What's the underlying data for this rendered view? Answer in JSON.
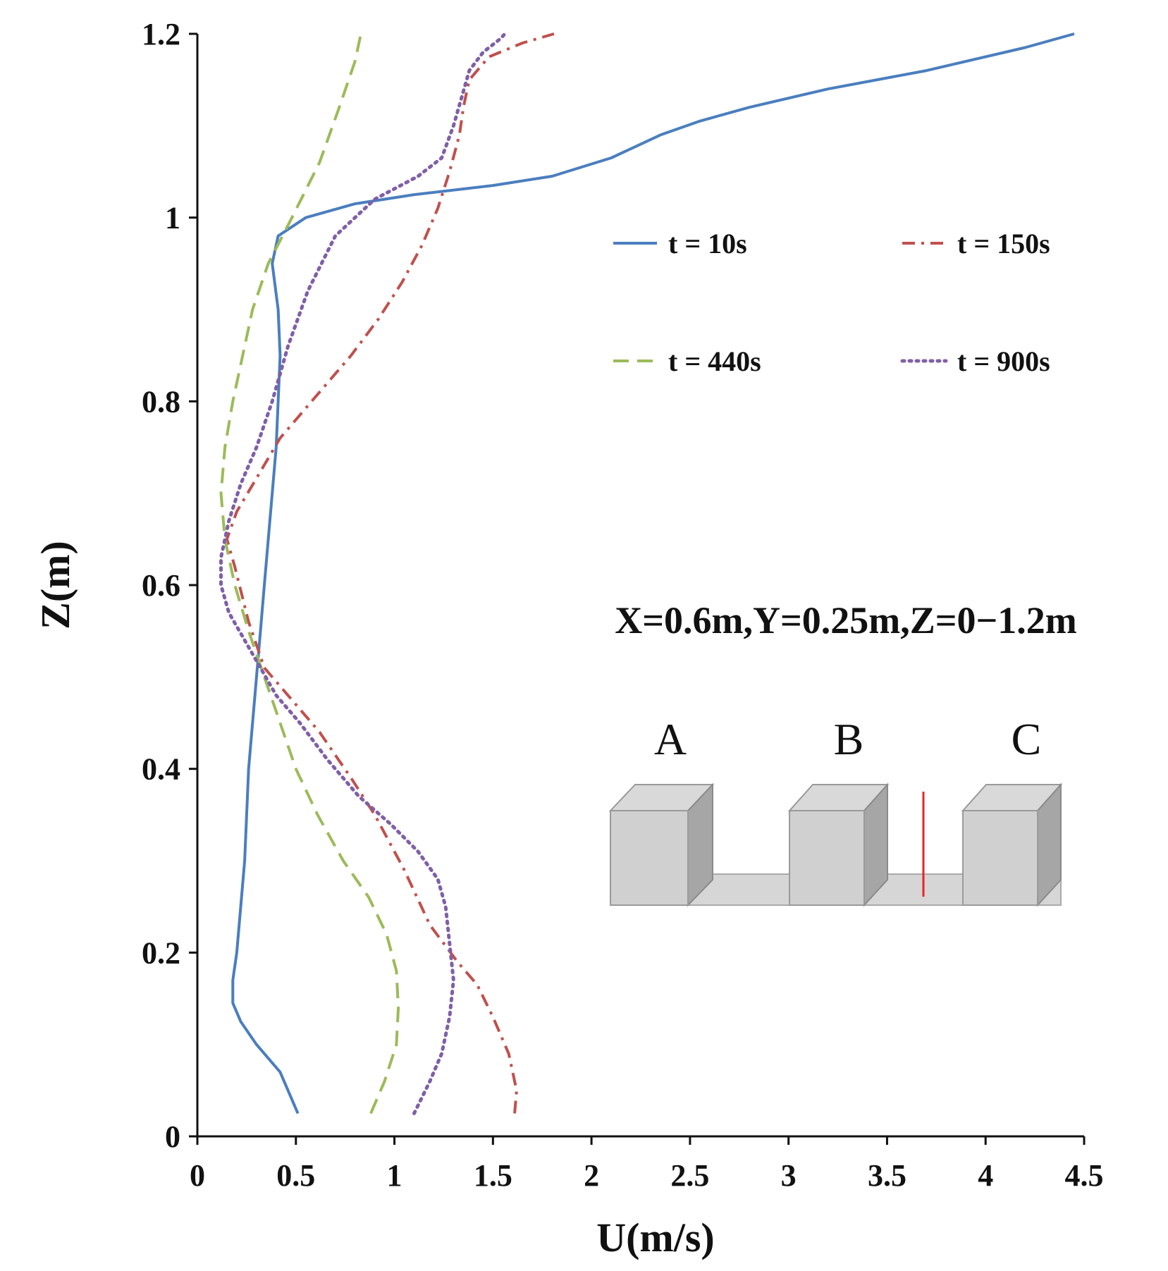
{
  "chart_data": {
    "type": "line",
    "title": "",
    "xlabel": "U(m/s)",
    "ylabel": "Z(m)",
    "xlim": [
      0,
      4.5
    ],
    "ylim": [
      0,
      1.2
    ],
    "xticks": [
      0,
      0.5,
      1,
      1.5,
      2,
      2.5,
      3,
      3.5,
      4,
      4.5
    ],
    "xtick_labels": [
      "0",
      "0.5",
      "1",
      "1.5",
      "2",
      "2.5",
      "3",
      "3.5",
      "4",
      "4.5"
    ],
    "yticks": [
      0,
      0.2,
      0.4,
      0.6,
      0.8,
      1.0,
      1.2
    ],
    "ytick_labels": [
      "0",
      "0.2",
      "0.4",
      "0.6",
      "0.8",
      "1",
      "1.2"
    ],
    "grid": false,
    "legend_position": "top-right",
    "annotation": "X=0.6m,Y=0.25m,Z=0−1.2m",
    "inset_labels": [
      "A",
      "B",
      "C"
    ],
    "series": [
      {
        "name": "t = 10s",
        "color": "#4a7ebf",
        "style": "solid",
        "points": [
          [
            0.51,
            0.025
          ],
          [
            0.42,
            0.07
          ],
          [
            0.3,
            0.1
          ],
          [
            0.22,
            0.125
          ],
          [
            0.18,
            0.145
          ],
          [
            0.18,
            0.17
          ],
          [
            0.2,
            0.2
          ],
          [
            0.22,
            0.25
          ],
          [
            0.24,
            0.3
          ],
          [
            0.25,
            0.35
          ],
          [
            0.26,
            0.4
          ],
          [
            0.28,
            0.45
          ],
          [
            0.3,
            0.5
          ],
          [
            0.32,
            0.55
          ],
          [
            0.34,
            0.6
          ],
          [
            0.36,
            0.65
          ],
          [
            0.38,
            0.7
          ],
          [
            0.4,
            0.75
          ],
          [
            0.41,
            0.8
          ],
          [
            0.42,
            0.85
          ],
          [
            0.41,
            0.9
          ],
          [
            0.38,
            0.95
          ],
          [
            0.41,
            0.98
          ],
          [
            0.55,
            1.0
          ],
          [
            0.8,
            1.015
          ],
          [
            1.1,
            1.025
          ],
          [
            1.5,
            1.035
          ],
          [
            1.8,
            1.045
          ],
          [
            2.1,
            1.065
          ],
          [
            2.35,
            1.09
          ],
          [
            2.55,
            1.105
          ],
          [
            2.8,
            1.12
          ],
          [
            3.2,
            1.14
          ],
          [
            3.7,
            1.16
          ],
          [
            4.2,
            1.185
          ],
          [
            4.45,
            1.2
          ]
        ]
      },
      {
        "name": "t = 150s",
        "color": "#c0504d",
        "style": "dashdot",
        "points": [
          [
            1.61,
            0.025
          ],
          [
            1.62,
            0.05
          ],
          [
            1.58,
            0.09
          ],
          [
            1.5,
            0.13
          ],
          [
            1.42,
            0.165
          ],
          [
            1.32,
            0.19
          ],
          [
            1.18,
            0.23
          ],
          [
            1.05,
            0.29
          ],
          [
            0.9,
            0.35
          ],
          [
            0.78,
            0.39
          ],
          [
            0.62,
            0.44
          ],
          [
            0.46,
            0.48
          ],
          [
            0.34,
            0.51
          ],
          [
            0.26,
            0.56
          ],
          [
            0.19,
            0.62
          ],
          [
            0.15,
            0.65
          ],
          [
            0.2,
            0.68
          ],
          [
            0.31,
            0.72
          ],
          [
            0.42,
            0.76
          ],
          [
            0.58,
            0.8
          ],
          [
            0.78,
            0.85
          ],
          [
            0.92,
            0.89
          ],
          [
            1.04,
            0.93
          ],
          [
            1.14,
            0.97
          ],
          [
            1.22,
            1.01
          ],
          [
            1.28,
            1.05
          ],
          [
            1.33,
            1.09
          ],
          [
            1.35,
            1.12
          ],
          [
            1.38,
            1.15
          ],
          [
            1.48,
            1.175
          ],
          [
            1.65,
            1.19
          ],
          [
            1.81,
            1.2
          ]
        ]
      },
      {
        "name": "t = 440s",
        "color": "#9bbb59",
        "style": "dashed",
        "points": [
          [
            0.88,
            0.025
          ],
          [
            0.95,
            0.06
          ],
          [
            1.01,
            0.1
          ],
          [
            1.02,
            0.14
          ],
          [
            1.01,
            0.18
          ],
          [
            0.96,
            0.22
          ],
          [
            0.87,
            0.26
          ],
          [
            0.74,
            0.3
          ],
          [
            0.61,
            0.35
          ],
          [
            0.5,
            0.4
          ],
          [
            0.42,
            0.45
          ],
          [
            0.34,
            0.5
          ],
          [
            0.26,
            0.55
          ],
          [
            0.19,
            0.6
          ],
          [
            0.14,
            0.65
          ],
          [
            0.12,
            0.7
          ],
          [
            0.14,
            0.75
          ],
          [
            0.18,
            0.8
          ],
          [
            0.23,
            0.85
          ],
          [
            0.28,
            0.9
          ],
          [
            0.36,
            0.95
          ],
          [
            0.48,
            1.0
          ],
          [
            0.62,
            1.06
          ],
          [
            0.72,
            1.12
          ],
          [
            0.8,
            1.17
          ],
          [
            0.83,
            1.2
          ]
        ]
      },
      {
        "name": "t = 900s",
        "color": "#7f5fa8",
        "style": "dotted",
        "points": [
          [
            1.1,
            0.025
          ],
          [
            1.18,
            0.06
          ],
          [
            1.24,
            0.09
          ],
          [
            1.28,
            0.13
          ],
          [
            1.3,
            0.17
          ],
          [
            1.28,
            0.21
          ],
          [
            1.26,
            0.25
          ],
          [
            1.22,
            0.28
          ],
          [
            1.12,
            0.31
          ],
          [
            0.98,
            0.34
          ],
          [
            0.82,
            0.37
          ],
          [
            0.66,
            0.41
          ],
          [
            0.52,
            0.45
          ],
          [
            0.4,
            0.48
          ],
          [
            0.32,
            0.51
          ],
          [
            0.24,
            0.54
          ],
          [
            0.16,
            0.57
          ],
          [
            0.12,
            0.6
          ],
          [
            0.12,
            0.63
          ],
          [
            0.16,
            0.67
          ],
          [
            0.22,
            0.71
          ],
          [
            0.3,
            0.75
          ],
          [
            0.38,
            0.8
          ],
          [
            0.46,
            0.86
          ],
          [
            0.56,
            0.92
          ],
          [
            0.7,
            0.98
          ],
          [
            0.9,
            1.02
          ],
          [
            1.12,
            1.045
          ],
          [
            1.24,
            1.065
          ],
          [
            1.3,
            1.1
          ],
          [
            1.34,
            1.13
          ],
          [
            1.38,
            1.16
          ],
          [
            1.45,
            1.18
          ],
          [
            1.54,
            1.195
          ],
          [
            1.56,
            1.2
          ]
        ]
      }
    ]
  }
}
